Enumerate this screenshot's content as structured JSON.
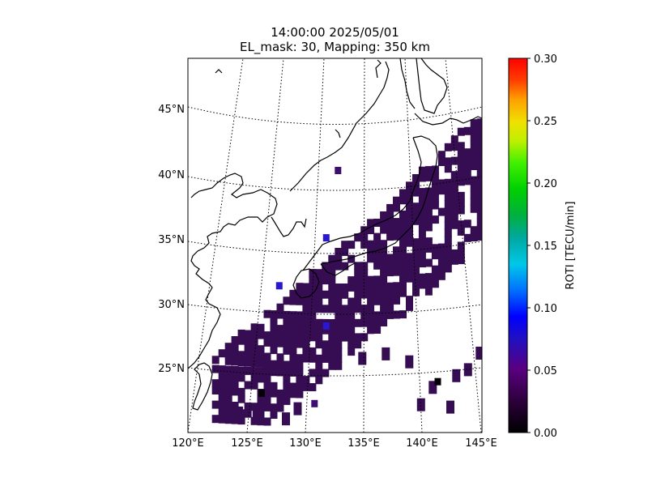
{
  "figure": {
    "title_line1": "14:00:00 2025/05/01",
    "title_line2": "EL_mask: 30, Mapping: 350 km"
  },
  "map": {
    "lon_labels": [
      "120°E",
      "125°E",
      "130°E",
      "135°E",
      "140°E",
      "145°E"
    ],
    "lat_labels": [
      "25°N",
      "30°N",
      "35°N",
      "40°N",
      "45°N"
    ],
    "lon_range": [
      120,
      145
    ],
    "lat_range": [
      20,
      49
    ],
    "gridlines": "dotted",
    "coastlines": true
  },
  "colorbar": {
    "label": "ROTI [TECU/min]",
    "min": 0.0,
    "max": 0.3,
    "tick_labels": [
      "0.00",
      "0.05",
      "0.10",
      "0.15",
      "0.20",
      "0.25",
      "0.30"
    ],
    "colormap": "nipy_spectral-like",
    "colors": [
      "#000000",
      "#3a0a5a",
      "#0000ff",
      "#00d0ff",
      "#00e000",
      "#f0f000",
      "#ff6000",
      "#ff0000"
    ]
  },
  "chart_data": {
    "type": "heatmap",
    "variable": "ROTI",
    "units": "TECU/min",
    "value_range": [
      0.0,
      0.3
    ],
    "typical_value": 0.02,
    "cells": [
      {
        "lon": 131.5,
        "lat": 35.3,
        "value": 0.08
      },
      {
        "lon": 127.5,
        "lat": 31.5,
        "value": 0.06
      },
      {
        "lon": 131.5,
        "lat": 28.5,
        "value": 0.06
      },
      {
        "lon": 132.5,
        "lat": 40.5,
        "value": 0.05
      },
      {
        "lon": 126.0,
        "lat": 23.2,
        "value": 0.0
      },
      {
        "lon": 141.0,
        "lat": 24.0,
        "value": 0.0
      },
      {
        "lon": 130.5,
        "lat": 22.5,
        "value": 0.05
      }
    ]
  }
}
